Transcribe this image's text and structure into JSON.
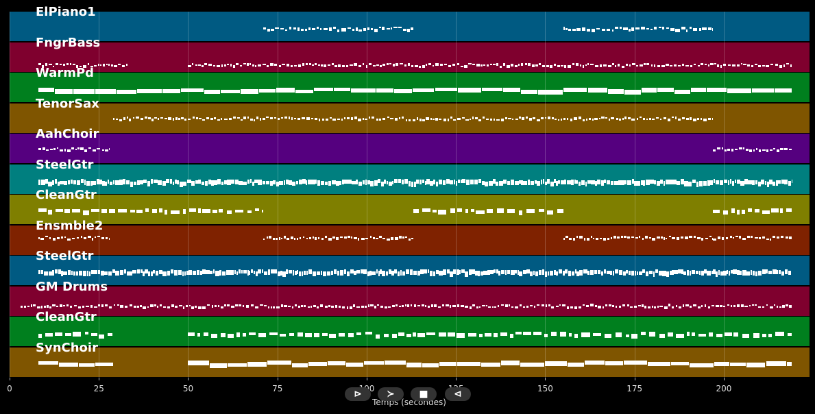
{
  "tracks": [
    {
      "name": "ElPiano1",
      "color": "#005a82"
    },
    {
      "name": "FngrBass",
      "color": "#7f002e"
    },
    {
      "name": "WarmPd",
      "color": "#007f1e"
    },
    {
      "name": "TenorSax",
      "color": "#7f5500"
    },
    {
      "name": "AahChoir",
      "color": "#55007f"
    },
    {
      "name": "SteelGtr",
      "color": "#007f7f"
    },
    {
      "name": "CleanGtr",
      "color": "#7f7f00"
    },
    {
      "name": "Ensmble2",
      "color": "#7f2200"
    },
    {
      "name": "SteelGtr",
      "color": "#005a82"
    },
    {
      "name": "GM Drums",
      "color": "#7f002e"
    },
    {
      "name": "CleanGtr",
      "color": "#007f1e"
    },
    {
      "name": "SynChoir",
      "color": "#7f5500"
    }
  ],
  "axis": {
    "title": "Temps (secondes)",
    "ticks": [
      "0",
      "25",
      "50",
      "75",
      "100",
      "125",
      "150",
      "175",
      "200"
    ],
    "tick_values": [
      0,
      25,
      50,
      75,
      100,
      125,
      150,
      175,
      200
    ],
    "xlim": [
      0,
      224
    ]
  },
  "controls": {
    "prev": "⊳",
    "play": "≻",
    "stop": "■",
    "next": "⊲"
  }
}
